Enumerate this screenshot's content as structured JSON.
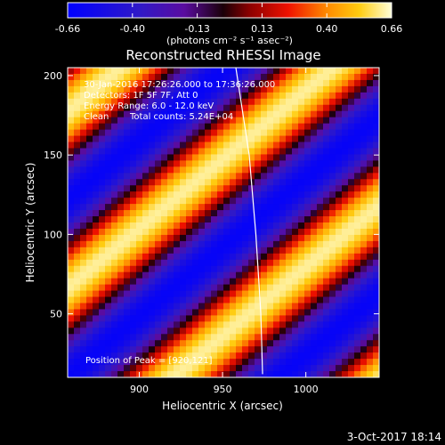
{
  "chart_data": {
    "type": "heatmap",
    "title": "Reconstructed RHESSI Image",
    "xlabel": "Heliocentric X (arcsec)",
    "ylabel": "Heliocentric Y (arcsec)",
    "xlim": [
      857,
      1044
    ],
    "ylim": [
      10,
      205
    ],
    "x_ticks": [
      900,
      950,
      1000
    ],
    "y_ticks": [
      50,
      100,
      150,
      200
    ],
    "colorbar": {
      "label": "(photons cm⁻² s⁻¹ asec⁻²)",
      "ticks": [
        "-0.66",
        "-0.40",
        "-0.13",
        "0.13",
        "0.40",
        "0.66"
      ],
      "min": -0.66,
      "max": 0.66
    },
    "annotations": [
      "30-Jan-2016 17:26:26.000 to 17:36:26.000",
      "Detectors: 1F 5F 7F, Att 0",
      "Energy Range: 6.0 - 12.0 keV",
      "Clean",
      "Total counts: 5.24E+04"
    ],
    "peak_label": "Position of Peak = [920,121]",
    "peak": [
      920,
      121
    ],
    "limb_curve": [
      [
        958,
        205
      ],
      [
        966,
        150
      ],
      [
        970,
        100
      ],
      [
        973,
        50
      ],
      [
        974,
        12
      ]
    ],
    "stripe_model": {
      "direction": [
        0.47,
        -0.54
      ],
      "period": 60,
      "amplitude": 0.62
    }
  },
  "footer": {
    "date": "3-Oct-2017 18:14"
  }
}
